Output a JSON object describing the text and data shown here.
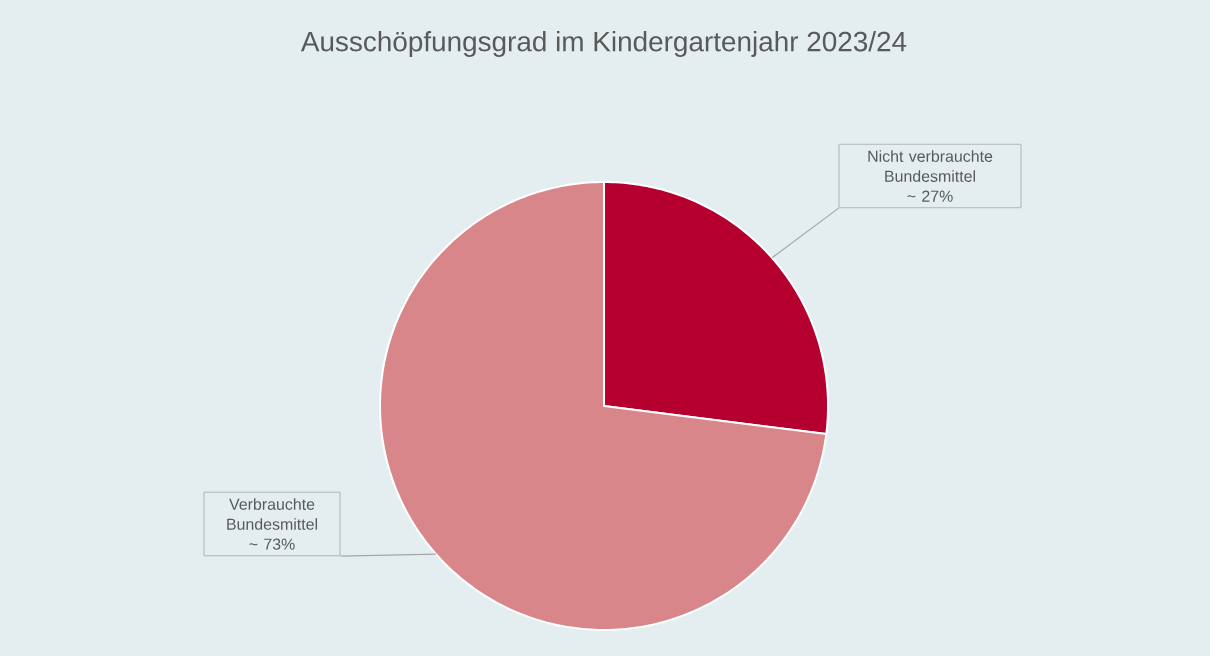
{
  "chart_data": {
    "type": "pie",
    "title": "Ausschöpfungsgrad im Kindergartenjahr 2023/24",
    "categories": [
      "Nicht verbrauchte Bundesmittel",
      "Verbrauchte Bundesmittel"
    ],
    "values": [
      27,
      73
    ],
    "colors": [
      "#b5002f",
      "#d9868b"
    ],
    "value_labels": [
      "~ 27%",
      "~ 73%"
    ]
  }
}
